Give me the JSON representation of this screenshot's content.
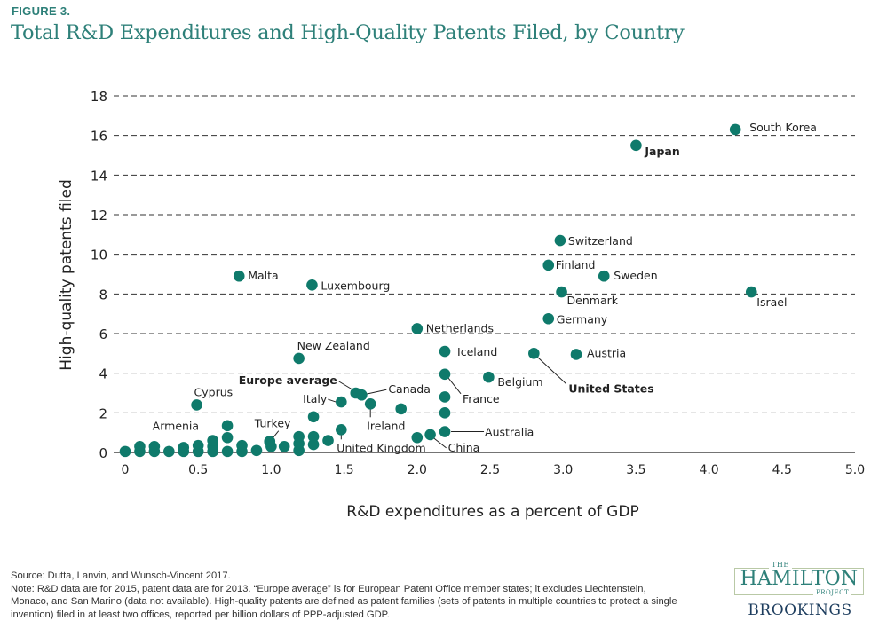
{
  "figure_label": "FIGURE 3.",
  "title": "Total R&D Expenditures and High-Quality Patents Filed, by Country",
  "colors": {
    "accent": "#2e8079",
    "dot": "#0f7a6b",
    "grid": "#333333",
    "text": "#222222"
  },
  "chart_data": {
    "type": "scatter",
    "title": "Total R&D Expenditures and High-Quality Patents Filed, by Country",
    "xlabel": "R&D expenditures as a percent of GDP",
    "ylabel": "High-quality patents filed",
    "xlim": [
      0,
      5
    ],
    "ylim": [
      0,
      18
    ],
    "xticks": [
      "0",
      "0.5",
      "1.0",
      "1.5",
      "2.0",
      "2.5",
      "3.0",
      "3.5",
      "4.0",
      "4.5",
      "5.0"
    ],
    "xtick_values": [
      0,
      0.5,
      1,
      1.5,
      2,
      2.5,
      3,
      3.5,
      4,
      4.5,
      5
    ],
    "yticks": [
      "0",
      "2",
      "4",
      "6",
      "8",
      "10",
      "12",
      "14",
      "16",
      "18"
    ],
    "ytick_values": [
      0,
      2,
      4,
      6,
      8,
      10,
      12,
      14,
      16,
      18
    ],
    "grid": "horizontal dashed",
    "labeled_points": [
      {
        "label": "South Korea",
        "x": 4.18,
        "y": 16.3,
        "bold": false
      },
      {
        "label": "Japan",
        "x": 3.5,
        "y": 15.5,
        "bold": true
      },
      {
        "label": "Switzerland",
        "x": 2.98,
        "y": 10.7,
        "bold": false
      },
      {
        "label": "Finland",
        "x": 2.9,
        "y": 9.45,
        "bold": false
      },
      {
        "label": "Sweden",
        "x": 3.28,
        "y": 8.9,
        "bold": false
      },
      {
        "label": "Denmark",
        "x": 2.99,
        "y": 8.1,
        "bold": false
      },
      {
        "label": "Israel",
        "x": 4.29,
        "y": 8.1,
        "bold": false
      },
      {
        "label": "Germany",
        "x": 2.9,
        "y": 6.75,
        "bold": false
      },
      {
        "label": "Malta",
        "x": 0.78,
        "y": 8.9,
        "bold": false
      },
      {
        "label": "Luxembourg",
        "x": 1.28,
        "y": 8.45,
        "bold": false
      },
      {
        "label": "Netherlands",
        "x": 2.0,
        "y": 6.25,
        "bold": false
      },
      {
        "label": "Iceland",
        "x": 2.19,
        "y": 5.1,
        "bold": false
      },
      {
        "label": "Austria",
        "x": 3.09,
        "y": 4.95,
        "bold": false
      },
      {
        "label": "United States",
        "x": 2.8,
        "y": 5.0,
        "bold": true
      },
      {
        "label": "New Zealand",
        "x": 1.19,
        "y": 4.75,
        "bold": false
      },
      {
        "label": "Belgium",
        "x": 2.49,
        "y": 3.8,
        "bold": false
      },
      {
        "label": "France",
        "x": 2.19,
        "y": 3.95,
        "bold": false
      },
      {
        "label": "Europe average",
        "x": 1.58,
        "y": 3.0,
        "bold": true
      },
      {
        "label": "Canada",
        "x": 1.62,
        "y": 2.9,
        "bold": false
      },
      {
        "label": "Italy",
        "x": 1.48,
        "y": 2.55,
        "bold": false
      },
      {
        "label": "Ireland",
        "x": 1.68,
        "y": 2.45,
        "bold": false
      },
      {
        "label": "Cyprus",
        "x": 0.49,
        "y": 2.4,
        "bold": false
      },
      {
        "label": "Armenia",
        "x": 0.2,
        "y": 0.55,
        "bold": false
      },
      {
        "label": "Turkey",
        "x": 0.99,
        "y": 0.55,
        "bold": false
      },
      {
        "label": "United Kingdom",
        "x": 1.48,
        "y": 1.15,
        "bold": false
      },
      {
        "label": "China",
        "x": 2.09,
        "y": 0.9,
        "bold": false
      },
      {
        "label": "Australia",
        "x": 2.19,
        "y": 1.05,
        "bold": false
      }
    ],
    "unlabeled_points": [
      {
        "x": 0.0,
        "y": 0.05
      },
      {
        "x": 0.1,
        "y": 0.05
      },
      {
        "x": 0.1,
        "y": 0.3
      },
      {
        "x": 0.2,
        "y": 0.05
      },
      {
        "x": 0.2,
        "y": 0.3
      },
      {
        "x": 0.3,
        "y": 0.05
      },
      {
        "x": 0.4,
        "y": 0.05
      },
      {
        "x": 0.4,
        "y": 0.25
      },
      {
        "x": 0.5,
        "y": 0.05
      },
      {
        "x": 0.5,
        "y": 0.35
      },
      {
        "x": 0.6,
        "y": 0.05
      },
      {
        "x": 0.6,
        "y": 0.3
      },
      {
        "x": 0.6,
        "y": 0.6
      },
      {
        "x": 0.7,
        "y": 0.05
      },
      {
        "x": 0.7,
        "y": 0.75
      },
      {
        "x": 0.7,
        "y": 1.35
      },
      {
        "x": 0.8,
        "y": 0.05
      },
      {
        "x": 0.8,
        "y": 0.35
      },
      {
        "x": 0.9,
        "y": 0.1
      },
      {
        "x": 1.0,
        "y": 0.3
      },
      {
        "x": 1.09,
        "y": 0.3
      },
      {
        "x": 1.19,
        "y": 0.1
      },
      {
        "x": 1.19,
        "y": 0.45
      },
      {
        "x": 1.19,
        "y": 0.8
      },
      {
        "x": 1.29,
        "y": 0.4
      },
      {
        "x": 1.29,
        "y": 0.8
      },
      {
        "x": 1.29,
        "y": 1.8
      },
      {
        "x": 1.39,
        "y": 0.6
      },
      {
        "x": 1.89,
        "y": 2.2
      },
      {
        "x": 2.19,
        "y": 2.8
      },
      {
        "x": 2.19,
        "y": 2.0
      },
      {
        "x": 2.0,
        "y": 0.75
      }
    ]
  },
  "source": "Source: Dutta, Lanvin, and Wunsch-Vincent 2017.",
  "note": "Note: R&D data are for 2015, patent data are for 2013. “Europe average” is for European Patent Office member states; it excludes Liechtenstein, Monaco, and San Marino (data not available). High-quality patents are defined as patent families (sets of patents in multiple countries to protect a single invention) filed in at least two offices, reported per billion dollars of PPP-adjusted GDP.",
  "logo": {
    "the": "THE",
    "hamilton": "HAMILTON",
    "project": "PROJECT",
    "brookings": "BROOKINGS"
  }
}
